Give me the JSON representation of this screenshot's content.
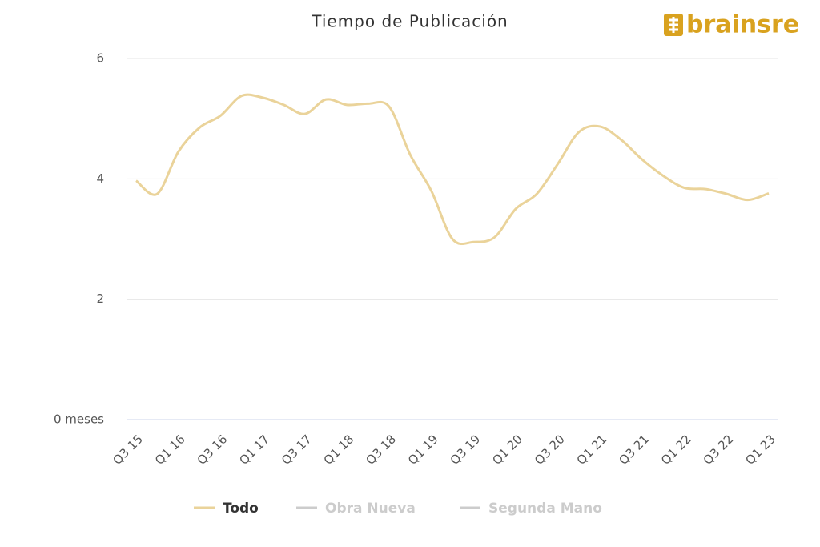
{
  "chart_data": {
    "type": "line",
    "title": "Tiempo de Publicación",
    "logo": "brainsre",
    "categories": [
      "Q3 15",
      null,
      "Q1 16",
      null,
      "Q3 16",
      null,
      "Q1 17",
      null,
      "Q3 17",
      null,
      "Q1 18",
      null,
      "Q3 18",
      null,
      "Q1 19",
      null,
      "Q3 19",
      null,
      "Q1 20",
      null,
      "Q3 20",
      null,
      "Q1 21",
      null,
      "Q3 21",
      null,
      "Q1 22",
      null,
      "Q3 22",
      null,
      "Q1 23"
    ],
    "series": [
      {
        "name": "Todo",
        "color": "#ead39a",
        "visible": true,
        "values": [
          3.97,
          3.75,
          4.45,
          4.85,
          5.05,
          5.38,
          5.35,
          5.23,
          5.08,
          5.32,
          5.23,
          5.25,
          5.2,
          4.4,
          3.8,
          3.0,
          2.95,
          3.03,
          3.5,
          3.75,
          4.25,
          4.78,
          4.87,
          4.65,
          4.32,
          4.05,
          3.85,
          3.83,
          3.75,
          3.65,
          3.76
        ]
      },
      {
        "name": "Obra Nueva",
        "color": "#cccccc",
        "visible": false,
        "values": [
          null,
          null,
          null,
          null,
          null,
          null,
          null,
          null,
          null,
          null,
          null,
          null,
          null,
          null,
          null,
          null,
          null,
          null,
          null,
          null,
          null,
          null,
          null,
          null,
          null,
          null,
          null,
          null,
          null,
          null,
          null
        ]
      },
      {
        "name": "Segunda Mano",
        "color": "#cccccc",
        "visible": false,
        "values": [
          null,
          null,
          null,
          null,
          null,
          null,
          null,
          null,
          null,
          null,
          null,
          null,
          null,
          null,
          null,
          null,
          null,
          null,
          null,
          null,
          null,
          null,
          null,
          null,
          null,
          null,
          null,
          null,
          null,
          null,
          null
        ]
      }
    ],
    "ylim": [
      0,
      6
    ],
    "yticks": [
      {
        "value": 0,
        "label": "0 meses"
      },
      2,
      4,
      6
    ],
    "grid": true
  }
}
